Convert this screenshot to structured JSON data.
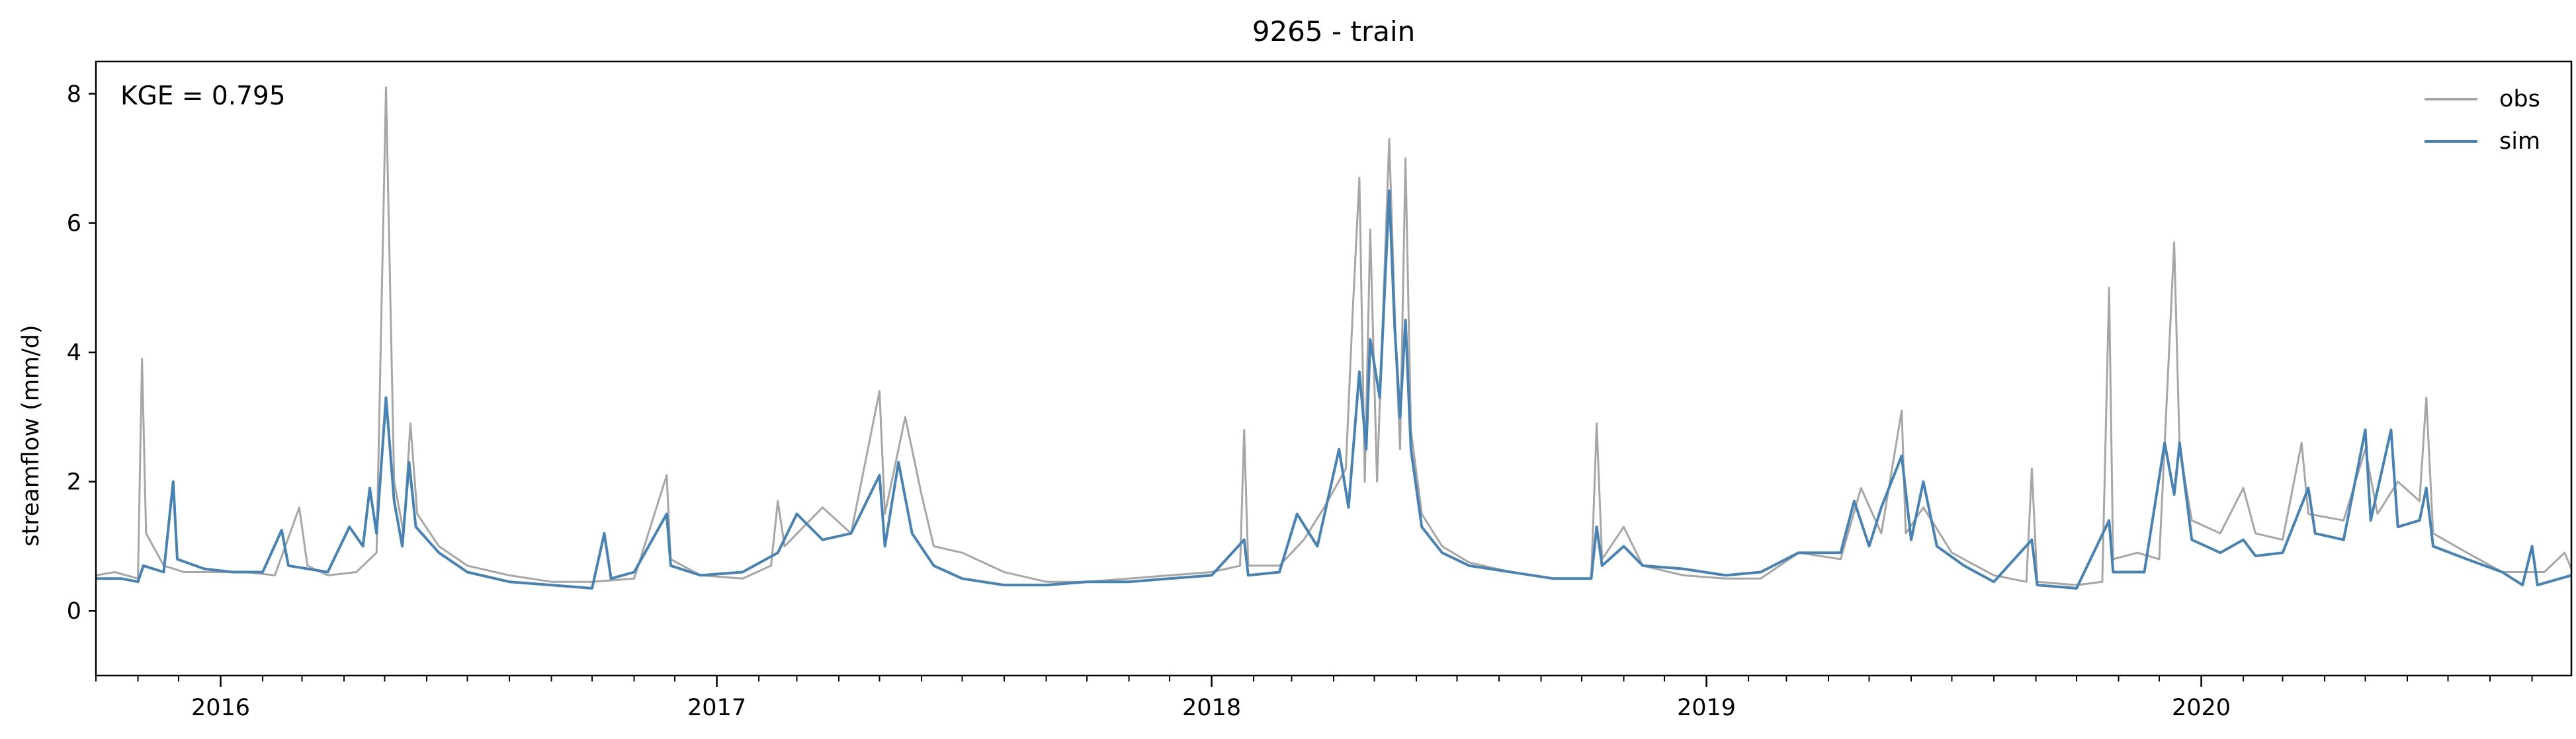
{
  "chart_data": {
    "type": "line",
    "title": "9265 - train",
    "xlabel": "",
    "ylabel": "streamflow (mm/d)",
    "annotation": "KGE = 0.795",
    "x_range": [
      "2015-10-01",
      "2020-09-30"
    ],
    "ylim": [
      -1.0,
      8.5
    ],
    "yticks": [
      0,
      2,
      4,
      6,
      8
    ],
    "xticks": [
      {
        "date": "2016-01-01",
        "label": "2016"
      },
      {
        "date": "2017-01-01",
        "label": "2017"
      },
      {
        "date": "2018-01-01",
        "label": "2018"
      },
      {
        "date": "2019-01-01",
        "label": "2019"
      },
      {
        "date": "2020-01-01",
        "label": "2020"
      }
    ],
    "x_minor_ticks": [
      "2015-10-01",
      "2015-11-01",
      "2015-12-01",
      "2016-02-01",
      "2016-03-01",
      "2016-04-01",
      "2016-05-01",
      "2016-06-01",
      "2016-07-01",
      "2016-08-01",
      "2016-09-01",
      "2016-10-01",
      "2016-11-01",
      "2016-12-01",
      "2017-02-01",
      "2017-03-01",
      "2017-04-01",
      "2017-05-01",
      "2017-06-01",
      "2017-07-01",
      "2017-08-01",
      "2017-09-01",
      "2017-10-01",
      "2017-11-01",
      "2017-12-01",
      "2018-02-01",
      "2018-03-01",
      "2018-04-01",
      "2018-05-01",
      "2018-06-01",
      "2018-07-01",
      "2018-08-01",
      "2018-09-01",
      "2018-10-01",
      "2018-11-01",
      "2018-12-01",
      "2019-02-01",
      "2019-03-01",
      "2019-04-01",
      "2019-05-01",
      "2019-06-01",
      "2019-07-01",
      "2019-08-01",
      "2019-09-01",
      "2019-10-01",
      "2019-11-01",
      "2019-12-01",
      "2020-02-01",
      "2020-03-01",
      "2020-04-01",
      "2020-05-01",
      "2020-06-01",
      "2020-07-01",
      "2020-08-01",
      "2020-09-01"
    ],
    "grid": false,
    "legend_position": "top-right",
    "series": [
      {
        "name": "obs",
        "color": "#a6a6a6",
        "points": [
          [
            "2015-10-01",
            0.55
          ],
          [
            "2015-10-15",
            0.6
          ],
          [
            "2015-11-01",
            0.5
          ],
          [
            "2015-11-04",
            3.9
          ],
          [
            "2015-11-07",
            1.2
          ],
          [
            "2015-11-20",
            0.7
          ],
          [
            "2015-12-05",
            0.6
          ],
          [
            "2016-01-01",
            0.6
          ],
          [
            "2016-01-20",
            0.6
          ],
          [
            "2016-02-10",
            0.55
          ],
          [
            "2016-02-28",
            1.6
          ],
          [
            "2016-03-05",
            0.7
          ],
          [
            "2016-03-20",
            0.55
          ],
          [
            "2016-04-10",
            0.6
          ],
          [
            "2016-04-25",
            0.9
          ],
          [
            "2016-05-02",
            8.1
          ],
          [
            "2016-05-08",
            2.0
          ],
          [
            "2016-05-15",
            1.2
          ],
          [
            "2016-05-20",
            2.9
          ],
          [
            "2016-05-25",
            1.5
          ],
          [
            "2016-06-10",
            1.0
          ],
          [
            "2016-07-01",
            0.7
          ],
          [
            "2016-08-01",
            0.55
          ],
          [
            "2016-09-01",
            0.45
          ],
          [
            "2016-10-01",
            0.45
          ],
          [
            "2016-11-01",
            0.5
          ],
          [
            "2016-11-25",
            2.1
          ],
          [
            "2016-11-28",
            0.8
          ],
          [
            "2016-12-20",
            0.55
          ],
          [
            "2017-01-20",
            0.5
          ],
          [
            "2017-02-10",
            0.7
          ],
          [
            "2017-02-15",
            1.7
          ],
          [
            "2017-02-20",
            1.0
          ],
          [
            "2017-03-20",
            1.6
          ],
          [
            "2017-04-10",
            1.2
          ],
          [
            "2017-05-01",
            3.4
          ],
          [
            "2017-05-05",
            1.5
          ],
          [
            "2017-05-20",
            3.0
          ],
          [
            "2017-06-01",
            1.8
          ],
          [
            "2017-06-10",
            1.0
          ],
          [
            "2017-07-01",
            0.9
          ],
          [
            "2017-08-01",
            0.6
          ],
          [
            "2017-09-01",
            0.45
          ],
          [
            "2017-10-01",
            0.45
          ],
          [
            "2017-11-01",
            0.5
          ],
          [
            "2017-12-01",
            0.55
          ],
          [
            "2018-01-01",
            0.6
          ],
          [
            "2018-01-22",
            0.7
          ],
          [
            "2018-01-25",
            2.8
          ],
          [
            "2018-01-28",
            0.7
          ],
          [
            "2018-02-20",
            0.7
          ],
          [
            "2018-03-10",
            1.1
          ],
          [
            "2018-03-25",
            1.6
          ],
          [
            "2018-04-10",
            2.2
          ],
          [
            "2018-04-15",
            4.6
          ],
          [
            "2018-04-20",
            6.7
          ],
          [
            "2018-04-24",
            2.0
          ],
          [
            "2018-04-28",
            5.9
          ],
          [
            "2018-05-03",
            2.0
          ],
          [
            "2018-05-12",
            7.3
          ],
          [
            "2018-05-17",
            4.0
          ],
          [
            "2018-05-20",
            2.5
          ],
          [
            "2018-05-24",
            7.0
          ],
          [
            "2018-05-28",
            2.8
          ],
          [
            "2018-06-05",
            1.5
          ],
          [
            "2018-06-20",
            1.0
          ],
          [
            "2018-07-10",
            0.75
          ],
          [
            "2018-08-10",
            0.6
          ],
          [
            "2018-09-10",
            0.5
          ],
          [
            "2018-10-08",
            0.5
          ],
          [
            "2018-10-12",
            2.9
          ],
          [
            "2018-10-16",
            0.8
          ],
          [
            "2018-11-01",
            1.3
          ],
          [
            "2018-11-15",
            0.7
          ],
          [
            "2018-12-15",
            0.55
          ],
          [
            "2019-01-15",
            0.5
          ],
          [
            "2019-02-10",
            0.5
          ],
          [
            "2019-03-10",
            0.9
          ],
          [
            "2019-04-10",
            0.8
          ],
          [
            "2019-04-25",
            1.9
          ],
          [
            "2019-05-10",
            1.2
          ],
          [
            "2019-05-25",
            3.1
          ],
          [
            "2019-05-28",
            1.2
          ],
          [
            "2019-06-10",
            1.6
          ],
          [
            "2019-07-01",
            0.9
          ],
          [
            "2019-08-01",
            0.55
          ],
          [
            "2019-08-25",
            0.45
          ],
          [
            "2019-08-29",
            2.2
          ],
          [
            "2019-09-02",
            0.45
          ],
          [
            "2019-10-01",
            0.4
          ],
          [
            "2019-10-20",
            0.45
          ],
          [
            "2019-10-25",
            5.0
          ],
          [
            "2019-10-28",
            0.8
          ],
          [
            "2019-11-15",
            0.9
          ],
          [
            "2019-12-01",
            0.8
          ],
          [
            "2019-12-12",
            5.7
          ],
          [
            "2019-12-16",
            2.5
          ],
          [
            "2019-12-25",
            1.4
          ],
          [
            "2020-01-15",
            1.2
          ],
          [
            "2020-02-01",
            1.9
          ],
          [
            "2020-02-10",
            1.2
          ],
          [
            "2020-03-01",
            1.1
          ],
          [
            "2020-03-15",
            2.6
          ],
          [
            "2020-03-20",
            1.5
          ],
          [
            "2020-04-15",
            1.4
          ],
          [
            "2020-05-01",
            2.5
          ],
          [
            "2020-05-10",
            1.5
          ],
          [
            "2020-05-25",
            2.0
          ],
          [
            "2020-06-10",
            1.7
          ],
          [
            "2020-06-15",
            3.3
          ],
          [
            "2020-06-20",
            1.2
          ],
          [
            "2020-07-15",
            0.9
          ],
          [
            "2020-08-10",
            0.6
          ],
          [
            "2020-09-10",
            0.6
          ],
          [
            "2020-09-25",
            0.9
          ],
          [
            "2020-09-30",
            0.65
          ]
        ]
      },
      {
        "name": "sim",
        "color": "#4682b4",
        "points": [
          [
            "2015-10-01",
            0.5
          ],
          [
            "2015-10-20",
            0.5
          ],
          [
            "2015-11-01",
            0.45
          ],
          [
            "2015-11-05",
            0.7
          ],
          [
            "2015-11-20",
            0.6
          ],
          [
            "2015-11-27",
            2.0
          ],
          [
            "2015-11-30",
            0.8
          ],
          [
            "2015-12-20",
            0.65
          ],
          [
            "2016-01-10",
            0.6
          ],
          [
            "2016-02-01",
            0.6
          ],
          [
            "2016-02-15",
            1.25
          ],
          [
            "2016-02-20",
            0.7
          ],
          [
            "2016-03-20",
            0.6
          ],
          [
            "2016-04-05",
            1.3
          ],
          [
            "2016-04-15",
            1.0
          ],
          [
            "2016-04-20",
            1.9
          ],
          [
            "2016-04-25",
            1.2
          ],
          [
            "2016-05-02",
            3.3
          ],
          [
            "2016-05-08",
            1.7
          ],
          [
            "2016-05-14",
            1.0
          ],
          [
            "2016-05-19",
            2.3
          ],
          [
            "2016-05-24",
            1.3
          ],
          [
            "2016-06-10",
            0.9
          ],
          [
            "2016-07-01",
            0.6
          ],
          [
            "2016-08-01",
            0.45
          ],
          [
            "2016-09-01",
            0.4
          ],
          [
            "2016-10-01",
            0.35
          ],
          [
            "2016-10-10",
            1.2
          ],
          [
            "2016-10-15",
            0.5
          ],
          [
            "2016-11-01",
            0.6
          ],
          [
            "2016-11-25",
            1.5
          ],
          [
            "2016-11-28",
            0.7
          ],
          [
            "2016-12-20",
            0.55
          ],
          [
            "2017-01-20",
            0.6
          ],
          [
            "2017-02-15",
            0.9
          ],
          [
            "2017-03-01",
            1.5
          ],
          [
            "2017-03-20",
            1.1
          ],
          [
            "2017-04-10",
            1.2
          ],
          [
            "2017-05-01",
            2.1
          ],
          [
            "2017-05-05",
            1.0
          ],
          [
            "2017-05-15",
            2.3
          ],
          [
            "2017-05-25",
            1.2
          ],
          [
            "2017-06-10",
            0.7
          ],
          [
            "2017-07-01",
            0.5
          ],
          [
            "2017-08-01",
            0.4
          ],
          [
            "2017-09-01",
            0.4
          ],
          [
            "2017-10-01",
            0.45
          ],
          [
            "2017-11-01",
            0.45
          ],
          [
            "2017-12-01",
            0.5
          ],
          [
            "2018-01-01",
            0.55
          ],
          [
            "2018-01-25",
            1.1
          ],
          [
            "2018-01-28",
            0.55
          ],
          [
            "2018-02-20",
            0.6
          ],
          [
            "2018-03-05",
            1.5
          ],
          [
            "2018-03-20",
            1.0
          ],
          [
            "2018-04-05",
            2.5
          ],
          [
            "2018-04-12",
            1.6
          ],
          [
            "2018-04-20",
            3.7
          ],
          [
            "2018-04-25",
            2.5
          ],
          [
            "2018-04-28",
            4.2
          ],
          [
            "2018-05-05",
            3.3
          ],
          [
            "2018-05-12",
            6.5
          ],
          [
            "2018-05-16",
            4.4
          ],
          [
            "2018-05-20",
            3.0
          ],
          [
            "2018-05-24",
            4.5
          ],
          [
            "2018-05-28",
            2.5
          ],
          [
            "2018-06-05",
            1.3
          ],
          [
            "2018-06-20",
            0.9
          ],
          [
            "2018-07-10",
            0.7
          ],
          [
            "2018-08-10",
            0.6
          ],
          [
            "2018-09-10",
            0.5
          ],
          [
            "2018-10-08",
            0.5
          ],
          [
            "2018-10-12",
            1.3
          ],
          [
            "2018-10-16",
            0.7
          ],
          [
            "2018-11-01",
            1.0
          ],
          [
            "2018-11-15",
            0.7
          ],
          [
            "2018-12-15",
            0.65
          ],
          [
            "2019-01-15",
            0.55
          ],
          [
            "2019-02-10",
            0.6
          ],
          [
            "2019-03-10",
            0.9
          ],
          [
            "2019-04-10",
            0.9
          ],
          [
            "2019-04-20",
            1.7
          ],
          [
            "2019-05-01",
            1.0
          ],
          [
            "2019-05-10",
            1.6
          ],
          [
            "2019-05-25",
            2.4
          ],
          [
            "2019-06-01",
            1.1
          ],
          [
            "2019-06-10",
            2.0
          ],
          [
            "2019-06-20",
            1.0
          ],
          [
            "2019-07-10",
            0.7
          ],
          [
            "2019-08-01",
            0.45
          ],
          [
            "2019-08-29",
            1.1
          ],
          [
            "2019-09-02",
            0.4
          ],
          [
            "2019-10-01",
            0.35
          ],
          [
            "2019-10-25",
            1.4
          ],
          [
            "2019-10-28",
            0.6
          ],
          [
            "2019-11-20",
            0.6
          ],
          [
            "2019-12-05",
            2.6
          ],
          [
            "2019-12-12",
            1.8
          ],
          [
            "2019-12-16",
            2.6
          ],
          [
            "2019-12-25",
            1.1
          ],
          [
            "2020-01-15",
            0.9
          ],
          [
            "2020-02-01",
            1.1
          ],
          [
            "2020-02-10",
            0.85
          ],
          [
            "2020-03-01",
            0.9
          ],
          [
            "2020-03-20",
            1.9
          ],
          [
            "2020-03-25",
            1.2
          ],
          [
            "2020-04-15",
            1.1
          ],
          [
            "2020-05-01",
            2.8
          ],
          [
            "2020-05-05",
            1.4
          ],
          [
            "2020-05-20",
            2.8
          ],
          [
            "2020-05-25",
            1.3
          ],
          [
            "2020-06-10",
            1.4
          ],
          [
            "2020-06-15",
            1.9
          ],
          [
            "2020-06-20",
            1.0
          ],
          [
            "2020-07-15",
            0.8
          ],
          [
            "2020-08-10",
            0.6
          ],
          [
            "2020-08-25",
            0.4
          ],
          [
            "2020-09-01",
            1.0
          ],
          [
            "2020-09-05",
            0.4
          ],
          [
            "2020-09-30",
            0.55
          ]
        ]
      }
    ]
  }
}
